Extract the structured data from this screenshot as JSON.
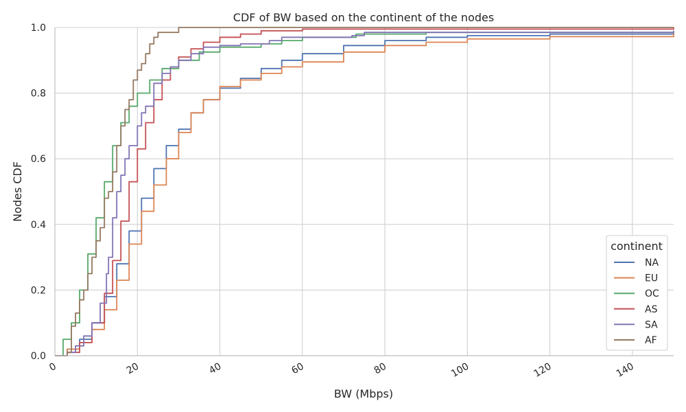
{
  "chart_data": {
    "type": "line",
    "title": "CDF of BW based on the continent of the nodes",
    "xlabel": "BW (Mbps)",
    "ylabel": "Nodes CDF",
    "xlim": [
      0,
      150
    ],
    "ylim": [
      0,
      1
    ],
    "x_ticks": [
      "0",
      "20",
      "40",
      "60",
      "80",
      "100",
      "120",
      "140"
    ],
    "y_ticks": [
      "0.0",
      "0.2",
      "0.4",
      "0.6",
      "0.8",
      "1.0"
    ],
    "grid": true,
    "legend": {
      "title": "continent",
      "position": "lower-right"
    },
    "series": [
      {
        "name": "NA",
        "color": "#4c72b0",
        "points": [
          [
            0,
            0
          ],
          [
            3,
            0.02
          ],
          [
            6,
            0.05
          ],
          [
            9,
            0.1
          ],
          [
            12,
            0.18
          ],
          [
            15,
            0.28
          ],
          [
            18,
            0.38
          ],
          [
            21,
            0.48
          ],
          [
            24,
            0.57
          ],
          [
            27,
            0.64
          ],
          [
            30,
            0.69
          ],
          [
            33,
            0.74
          ],
          [
            36,
            0.78
          ],
          [
            40,
            0.815
          ],
          [
            45,
            0.845
          ],
          [
            50,
            0.875
          ],
          [
            55,
            0.9
          ],
          [
            60,
            0.92
          ],
          [
            70,
            0.945
          ],
          [
            80,
            0.96
          ],
          [
            90,
            0.97
          ],
          [
            100,
            0.975
          ],
          [
            120,
            0.98
          ],
          [
            150,
            0.985
          ]
        ]
      },
      {
        "name": "EU",
        "color": "#dd8452",
        "points": [
          [
            0,
            0
          ],
          [
            3,
            0.02
          ],
          [
            6,
            0.04
          ],
          [
            9,
            0.08
          ],
          [
            12,
            0.14
          ],
          [
            15,
            0.23
          ],
          [
            18,
            0.34
          ],
          [
            21,
            0.44
          ],
          [
            24,
            0.52
          ],
          [
            27,
            0.6
          ],
          [
            30,
            0.68
          ],
          [
            33,
            0.74
          ],
          [
            36,
            0.78
          ],
          [
            40,
            0.82
          ],
          [
            45,
            0.84
          ],
          [
            50,
            0.86
          ],
          [
            55,
            0.88
          ],
          [
            60,
            0.895
          ],
          [
            70,
            0.925
          ],
          [
            80,
            0.945
          ],
          [
            90,
            0.955
          ],
          [
            100,
            0.965
          ],
          [
            120,
            0.972
          ],
          [
            150,
            0.982
          ]
        ]
      },
      {
        "name": "OC",
        "color": "#55a868",
        "points": [
          [
            0,
            0
          ],
          [
            2,
            0.05
          ],
          [
            4,
            0.1
          ],
          [
            6,
            0.2
          ],
          [
            8,
            0.31
          ],
          [
            10,
            0.42
          ],
          [
            12,
            0.53
          ],
          [
            14,
            0.64
          ],
          [
            16,
            0.71
          ],
          [
            18,
            0.76
          ],
          [
            20,
            0.8
          ],
          [
            23,
            0.84
          ],
          [
            26,
            0.875
          ],
          [
            30,
            0.9
          ],
          [
            35,
            0.925
          ],
          [
            40,
            0.94
          ],
          [
            50,
            0.95
          ],
          [
            55,
            0.96
          ],
          [
            60,
            0.97
          ],
          [
            73,
            0.98
          ],
          [
            90,
            0.985
          ],
          [
            150,
            0.99
          ]
        ]
      },
      {
        "name": "AS",
        "color": "#c44e52",
        "points": [
          [
            0,
            0
          ],
          [
            3,
            0.01
          ],
          [
            6,
            0.04
          ],
          [
            9,
            0.1
          ],
          [
            12,
            0.19
          ],
          [
            14,
            0.29
          ],
          [
            16,
            0.41
          ],
          [
            18,
            0.53
          ],
          [
            20,
            0.63
          ],
          [
            22,
            0.71
          ],
          [
            24,
            0.78
          ],
          [
            26,
            0.84
          ],
          [
            28,
            0.88
          ],
          [
            30,
            0.91
          ],
          [
            33,
            0.935
          ],
          [
            36,
            0.955
          ],
          [
            40,
            0.97
          ],
          [
            45,
            0.98
          ],
          [
            50,
            0.99
          ],
          [
            60,
            0.995
          ],
          [
            150,
            1.0
          ]
        ]
      },
      {
        "name": "SA",
        "color": "#8172b3",
        "points": [
          [
            0,
            0
          ],
          [
            3,
            0.01
          ],
          [
            5,
            0.03
          ],
          [
            7,
            0.06
          ],
          [
            9,
            0.1
          ],
          [
            11,
            0.16
          ],
          [
            12.5,
            0.25
          ],
          [
            13,
            0.3
          ],
          [
            14,
            0.42
          ],
          [
            15,
            0.5
          ],
          [
            16,
            0.55
          ],
          [
            17,
            0.6
          ],
          [
            18,
            0.64
          ],
          [
            20,
            0.7
          ],
          [
            21,
            0.74
          ],
          [
            22,
            0.76
          ],
          [
            24,
            0.83
          ],
          [
            26,
            0.86
          ],
          [
            28,
            0.88
          ],
          [
            30,
            0.9
          ],
          [
            33,
            0.92
          ],
          [
            36,
            0.94
          ],
          [
            40,
            0.945
          ],
          [
            45,
            0.95
          ],
          [
            52,
            0.96
          ],
          [
            55,
            0.97
          ],
          [
            72,
            0.975
          ],
          [
            75,
            0.985
          ],
          [
            150,
            0.99
          ]
        ]
      },
      {
        "name": "AF",
        "color": "#937860",
        "points": [
          [
            0,
            0
          ],
          [
            3,
            0.01
          ],
          [
            4,
            0.09
          ],
          [
            5,
            0.13
          ],
          [
            6,
            0.17
          ],
          [
            7,
            0.2
          ],
          [
            8,
            0.25
          ],
          [
            9,
            0.3
          ],
          [
            10,
            0.35
          ],
          [
            11,
            0.39
          ],
          [
            12,
            0.48
          ],
          [
            13,
            0.5
          ],
          [
            14,
            0.56
          ],
          [
            15,
            0.64
          ],
          [
            16,
            0.7
          ],
          [
            17,
            0.75
          ],
          [
            18,
            0.78
          ],
          [
            19,
            0.84
          ],
          [
            20,
            0.87
          ],
          [
            21,
            0.89
          ],
          [
            22,
            0.92
          ],
          [
            23,
            0.95
          ],
          [
            24,
            0.97
          ],
          [
            25,
            0.985
          ],
          [
            30,
            1.0
          ]
        ]
      }
    ]
  }
}
